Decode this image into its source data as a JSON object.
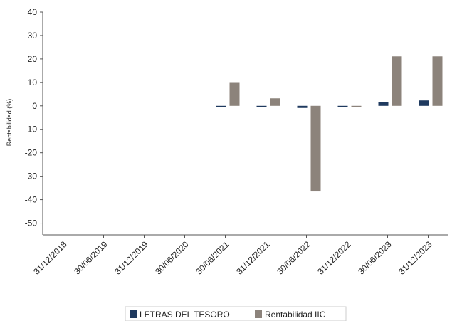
{
  "chart_data": {
    "type": "bar",
    "categories": [
      "31/12/2018",
      "30/06/2019",
      "31/12/2019",
      "30/06/2020",
      "30/06/2021",
      "31/12/2021",
      "30/06/2022",
      "31/12/2022",
      "30/06/2023",
      "31/12/2023"
    ],
    "series": [
      {
        "name": "LETRAS DEL TESORO",
        "color": "#1f3a5f",
        "values": [
          null,
          null,
          null,
          null,
          -0.3,
          -0.3,
          -0.9,
          -0.3,
          1.6,
          2.3
        ]
      },
      {
        "name": "Rentabilidad IIC",
        "color": "#8c837b",
        "values": [
          null,
          null,
          null,
          null,
          10.1,
          3.2,
          -36.5,
          -0.5,
          21.1,
          21.1
        ]
      }
    ],
    "ylabel": "Rentabilidad (%)",
    "xlabel": "",
    "ylim": [
      -55,
      40
    ],
    "yticks": [
      40,
      30,
      20,
      10,
      0,
      -10,
      -20,
      -30,
      -40,
      -50
    ],
    "grid": false,
    "legend_position": "bottom"
  }
}
